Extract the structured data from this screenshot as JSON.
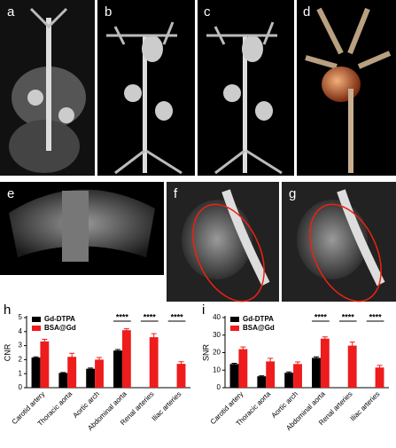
{
  "panel_labels": [
    "a",
    "b",
    "c",
    "d",
    "e",
    "f",
    "g"
  ],
  "chart_data": [
    {
      "type": "bar",
      "panel": "h",
      "ylabel": "CNR",
      "categories": [
        "Carotid artery",
        "Thoracic aorta",
        "Aortic arch",
        "Abdominal aorta",
        "Renal arteries",
        "Iliac arteries"
      ],
      "series": [
        {
          "name": "Gd-DTPA",
          "color": "#000000",
          "values": [
            2.15,
            1.05,
            1.35,
            2.65,
            null,
            null
          ],
          "errors": [
            0.05,
            0.03,
            0.05,
            0.07,
            null,
            null
          ]
        },
        {
          "name": "BSA@Gd",
          "color": "#ee1c1c",
          "values": [
            3.3,
            2.2,
            2.0,
            4.1,
            3.6,
            1.7
          ],
          "errors": [
            0.15,
            0.25,
            0.15,
            0.1,
            0.25,
            0.15
          ]
        }
      ],
      "significance": [
        null,
        null,
        null,
        "****",
        "****",
        "****"
      ],
      "ylim": [
        0,
        5
      ],
      "yticks": [
        0,
        1,
        2,
        3,
        4,
        5
      ],
      "legend": "upper-left"
    },
    {
      "type": "bar",
      "panel": "i",
      "ylabel": "SNR",
      "categories": [
        "Carotid artery",
        "Thoracic aorta",
        "Aortic arch",
        "Abdominal aorta",
        "Renal arteries",
        "Iliac arteries"
      ],
      "series": [
        {
          "name": "Gd-DTPA",
          "color": "#000000",
          "values": [
            13.5,
            6.5,
            8.5,
            17,
            null,
            null
          ],
          "errors": [
            0.4,
            0.3,
            0.5,
            0.6,
            null,
            null
          ]
        },
        {
          "name": "BSA@Gd",
          "color": "#ee1c1c",
          "values": [
            22,
            15,
            13.5,
            28,
            24,
            11.5
          ],
          "errors": [
            1.2,
            1.8,
            1.2,
            1,
            2,
            1.2
          ]
        }
      ],
      "significance": [
        null,
        null,
        null,
        "****",
        "****",
        "****"
      ],
      "ylim": [
        0,
        40
      ],
      "yticks": [
        0,
        10,
        20,
        30,
        40
      ],
      "legend": "upper-left"
    }
  ]
}
